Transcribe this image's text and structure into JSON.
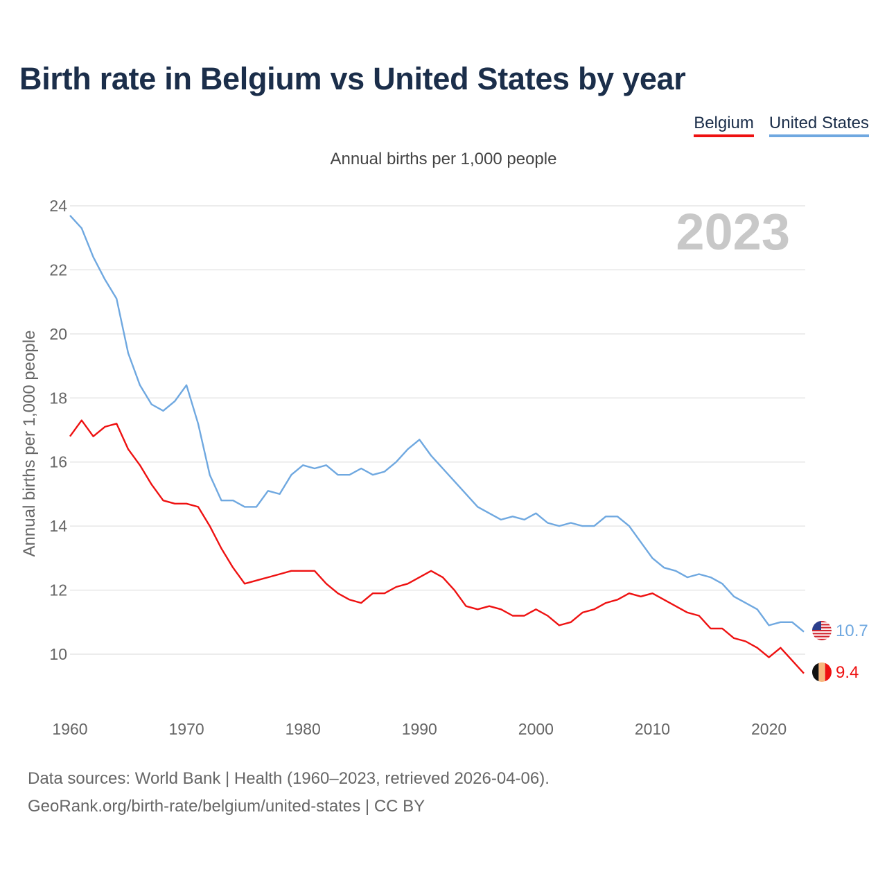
{
  "chart_data": {
    "type": "line",
    "title": "Birth rate in Belgium vs United States by year",
    "subtitle": "Annual births per 1,000 people",
    "ylabel": "Annual births per 1,000 people",
    "xlabel": "",
    "xlim": [
      1960,
      2023
    ],
    "ylim": [
      10,
      24
    ],
    "x_ticks": [
      1960,
      1970,
      1980,
      1990,
      2000,
      2010,
      2020
    ],
    "y_ticks": [
      10,
      12,
      14,
      16,
      18,
      20,
      22,
      24
    ],
    "grid": true,
    "legend_position": "top-right",
    "year_indicator": "2023",
    "x": [
      1960,
      1961,
      1962,
      1963,
      1964,
      1965,
      1966,
      1967,
      1968,
      1969,
      1970,
      1971,
      1972,
      1973,
      1974,
      1975,
      1976,
      1977,
      1978,
      1979,
      1980,
      1981,
      1982,
      1983,
      1984,
      1985,
      1986,
      1987,
      1988,
      1989,
      1990,
      1991,
      1992,
      1993,
      1994,
      1995,
      1996,
      1997,
      1998,
      1999,
      2000,
      2001,
      2002,
      2003,
      2004,
      2005,
      2006,
      2007,
      2008,
      2009,
      2010,
      2011,
      2012,
      2013,
      2014,
      2015,
      2016,
      2017,
      2018,
      2019,
      2020,
      2021,
      2022,
      2023
    ],
    "series": [
      {
        "name": "Belgium",
        "color": "#ee1111",
        "end_label": "9.4",
        "flag": "belgium-flag",
        "values": [
          16.8,
          17.3,
          16.8,
          17.1,
          17.2,
          16.4,
          15.9,
          15.3,
          14.8,
          14.7,
          14.7,
          14.6,
          14.0,
          13.3,
          12.7,
          12.2,
          12.3,
          12.4,
          12.5,
          12.6,
          12.6,
          12.6,
          12.2,
          11.9,
          11.7,
          11.6,
          11.9,
          11.9,
          12.1,
          12.2,
          12.4,
          12.6,
          12.4,
          12.0,
          11.5,
          11.4,
          11.5,
          11.4,
          11.2,
          11.2,
          11.4,
          11.2,
          10.9,
          11.0,
          11.3,
          11.4,
          11.6,
          11.7,
          11.9,
          11.8,
          11.9,
          11.7,
          11.5,
          11.3,
          11.2,
          10.8,
          10.8,
          10.5,
          10.4,
          10.2,
          9.9,
          10.2,
          9.8,
          9.4
        ]
      },
      {
        "name": "United States",
        "color": "#6fa8e0",
        "end_label": "10.7",
        "flag": "us-flag",
        "values": [
          23.7,
          23.3,
          22.4,
          21.7,
          21.1,
          19.4,
          18.4,
          17.8,
          17.6,
          17.9,
          18.4,
          17.2,
          15.6,
          14.8,
          14.8,
          14.6,
          14.6,
          15.1,
          15.0,
          15.6,
          15.9,
          15.8,
          15.9,
          15.6,
          15.6,
          15.8,
          15.6,
          15.7,
          16.0,
          16.4,
          16.7,
          16.2,
          15.8,
          15.4,
          15.0,
          14.6,
          14.4,
          14.2,
          14.3,
          14.2,
          14.4,
          14.1,
          14.0,
          14.1,
          14.0,
          14.0,
          14.3,
          14.3,
          14.0,
          13.5,
          13.0,
          12.7,
          12.6,
          12.4,
          12.5,
          12.4,
          12.2,
          11.8,
          11.6,
          11.4,
          10.9,
          11.0,
          11.0,
          10.7
        ]
      }
    ]
  },
  "footer": {
    "line1": "Data sources: World Bank | Health (1960–2023, retrieved 2026-04-06).",
    "line2": "GeoRank.org/birth-rate/belgium/united-states | CC BY"
  }
}
